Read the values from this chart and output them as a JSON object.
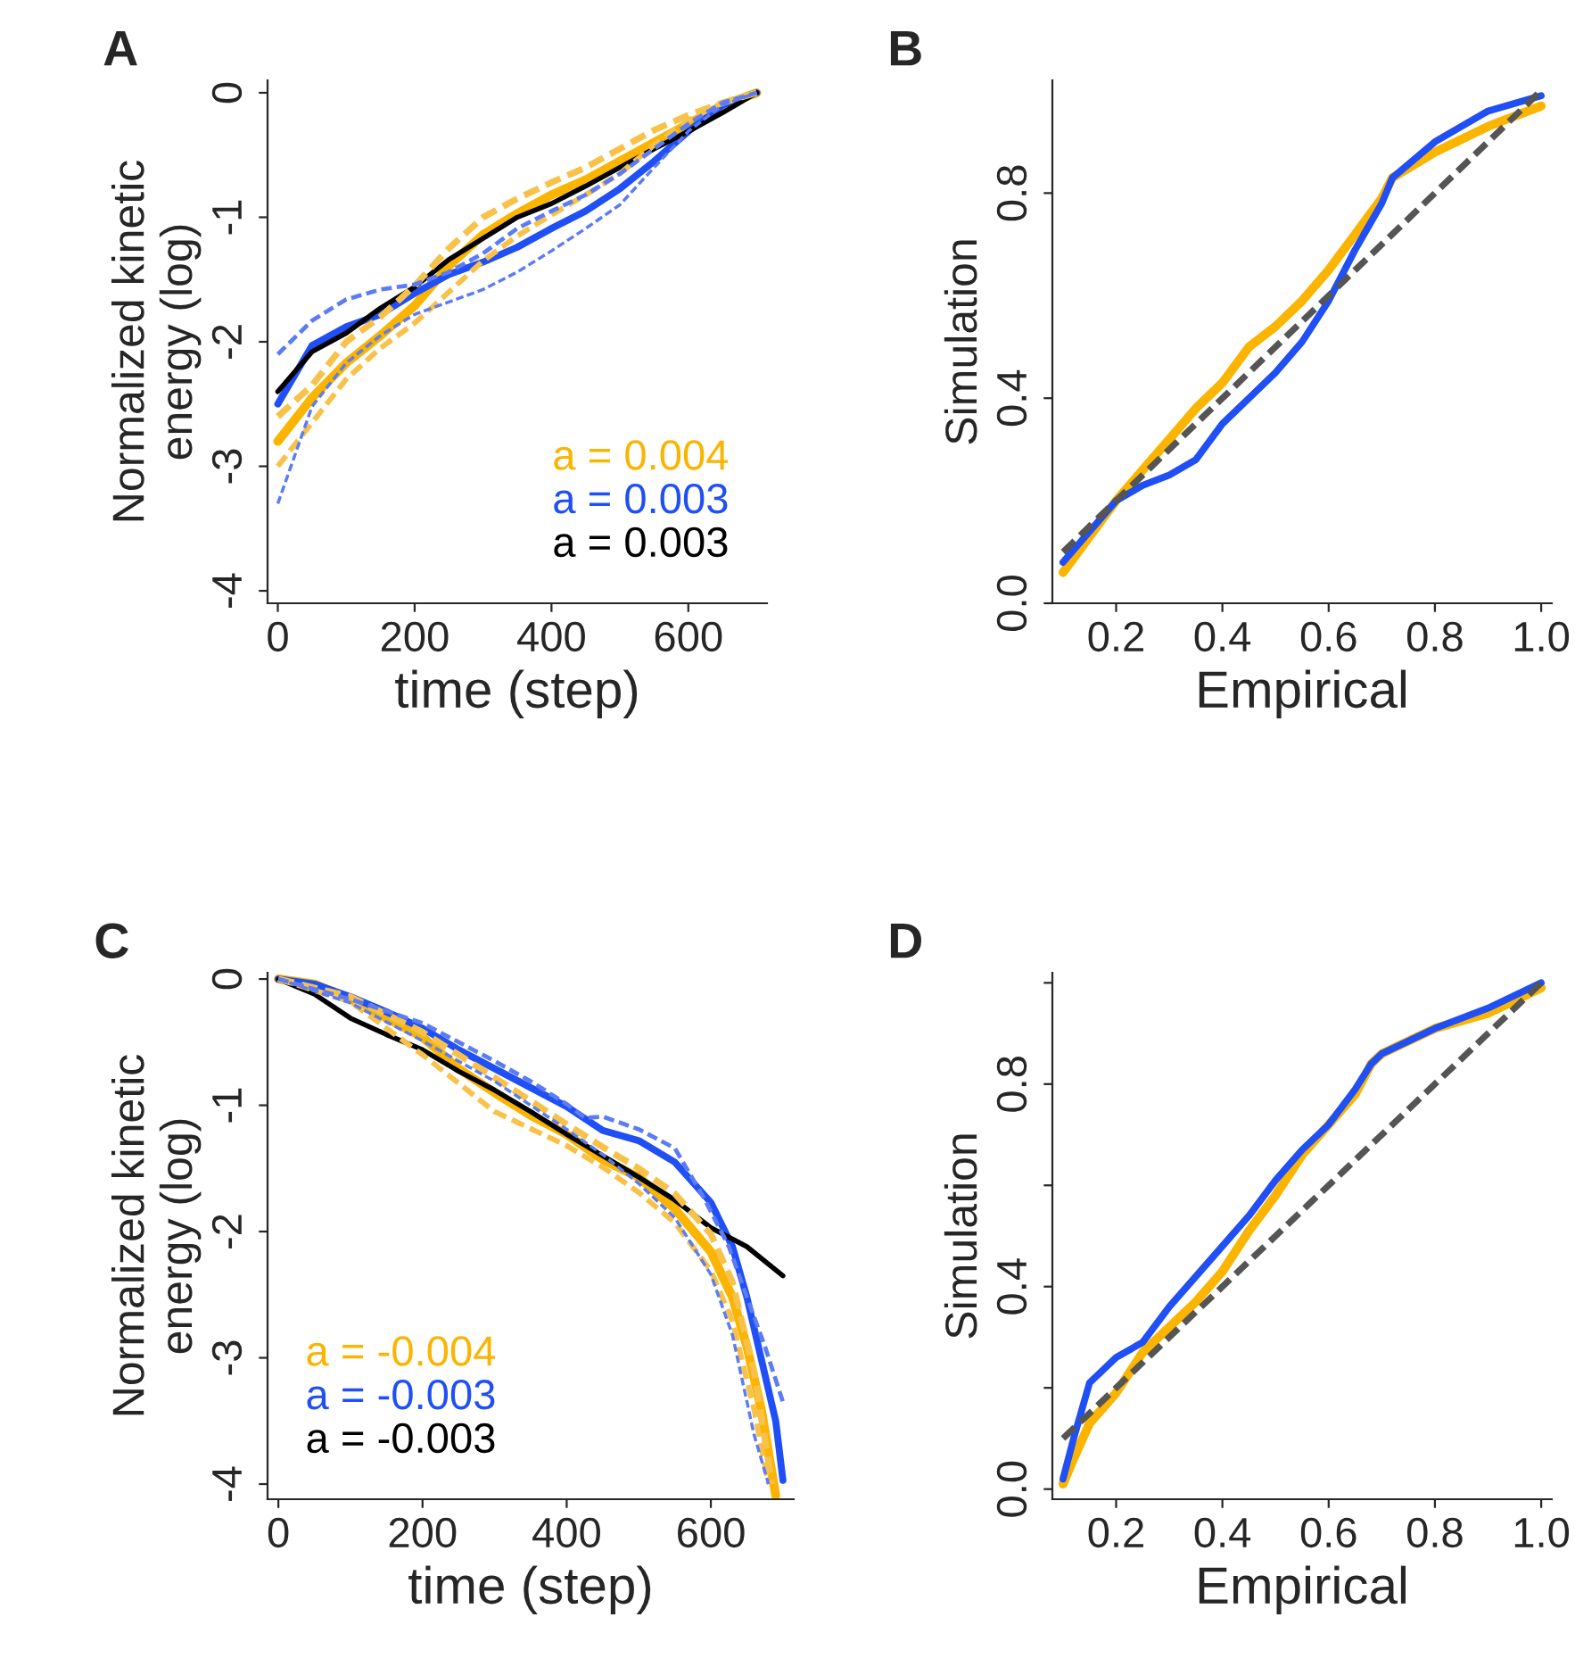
{
  "chart_data": [
    {
      "type": "line",
      "title": "A",
      "xlabel": "time (step)",
      "ylabel": "Normalized kinetic\nenergy (log)",
      "xlim": [
        -15,
        715
      ],
      "ylim": [
        -4.1,
        0.1
      ],
      "xticks": [
        0,
        200,
        400,
        600
      ],
      "yticks": [
        -4,
        -3,
        -2,
        -1,
        0
      ],
      "legend": "bottom right",
      "grid": false,
      "series": [
        {
          "color": "#f8c24a",
          "line_style": "dashed",
          "x": [
            0,
            50,
            100,
            150,
            200,
            250,
            300,
            350,
            400,
            450,
            500,
            550,
            600,
            650,
            700
          ],
          "values": [
            -2.6,
            -2.35,
            -2.0,
            -1.8,
            -1.55,
            -1.25,
            -1.0,
            -0.85,
            -0.72,
            -0.6,
            -0.45,
            -0.3,
            -0.18,
            -0.08,
            0
          ]
        },
        {
          "color": "#f8c24a",
          "line_style": "dashed",
          "x": [
            0,
            50,
            100,
            150,
            200,
            250,
            300,
            350,
            400,
            450,
            500,
            550,
            600,
            650,
            700
          ],
          "values": [
            -3.0,
            -2.65,
            -2.3,
            -2.05,
            -1.85,
            -1.6,
            -1.35,
            -1.15,
            -0.98,
            -0.82,
            -0.65,
            -0.42,
            -0.22,
            -0.08,
            0
          ]
        },
        {
          "color": "#5b7cf5",
          "line_style": "dashed",
          "x": [
            0,
            50,
            100,
            150,
            200,
            250,
            300,
            350,
            400,
            450,
            500,
            550,
            600,
            650,
            700
          ],
          "values": [
            -2.1,
            -1.83,
            -1.66,
            -1.58,
            -1.54,
            -1.44,
            -1.29,
            -1.09,
            -0.95,
            -0.82,
            -0.65,
            -0.45,
            -0.25,
            -0.08,
            0
          ]
        },
        {
          "color": "#5b7cf5",
          "line_style": "dashed",
          "x": [
            0,
            50,
            100,
            150,
            200,
            250,
            300,
            350,
            400,
            450,
            500,
            550,
            600,
            650,
            700
          ],
          "values": [
            -3.3,
            -2.52,
            -2.17,
            -1.95,
            -1.78,
            -1.68,
            -1.58,
            -1.44,
            -1.27,
            -1.09,
            -0.9,
            -0.6,
            -0.31,
            -0.1,
            0
          ]
        },
        {
          "name": "a = 0.004",
          "color": "#fbb400",
          "line_style": "solid",
          "x": [
            0,
            50,
            100,
            150,
            200,
            250,
            300,
            350,
            400,
            450,
            500,
            550,
            600,
            650,
            700
          ],
          "values": [
            -2.8,
            -2.45,
            -2.17,
            -1.95,
            -1.71,
            -1.39,
            -1.14,
            -0.97,
            -0.82,
            -0.7,
            -0.55,
            -0.4,
            -0.25,
            -0.1,
            0
          ]
        },
        {
          "name": "a = 0.003",
          "color": "#1f4ff5",
          "line_style": "solid",
          "x": [
            0,
            50,
            100,
            150,
            200,
            250,
            300,
            350,
            400,
            450,
            500,
            550,
            600,
            650,
            700
          ],
          "values": [
            -2.5,
            -2.03,
            -1.88,
            -1.78,
            -1.61,
            -1.46,
            -1.36,
            -1.24,
            -1.09,
            -0.95,
            -0.77,
            -0.55,
            -0.31,
            -0.1,
            0
          ]
        },
        {
          "name": "a = 0.003",
          "color": "#000000",
          "line_style": "solid",
          "x": [
            0,
            50,
            100,
            150,
            200,
            250,
            300,
            350,
            400,
            450,
            500,
            550,
            600,
            650,
            700
          ],
          "values": [
            -2.4,
            -2.08,
            -1.93,
            -1.73,
            -1.56,
            -1.34,
            -1.17,
            -1.0,
            -0.89,
            -0.75,
            -0.6,
            -0.45,
            -0.31,
            -0.16,
            0
          ]
        }
      ]
    },
    {
      "type": "line",
      "title": "B",
      "xlabel": "Empirical",
      "ylabel": "Simulation",
      "xlim": [
        0.08,
        1.02
      ],
      "ylim": [
        0,
        1.02
      ],
      "xticks": [
        0.2,
        0.4,
        0.6,
        0.8,
        {
          "value": 1,
          "label": "1.0"
        }
      ],
      "yticks": [
        {
          "value": 0,
          "label": "0.0"
        },
        0.4,
        0.8
      ],
      "grid": false,
      "series": [
        {
          "color": "#fbb400",
          "line_style": "solid",
          "x": [
            0.1,
            0.15,
            0.2,
            0.25,
            0.3,
            0.35,
            0.4,
            0.45,
            0.5,
            0.55,
            0.6,
            0.65,
            0.7,
            0.72,
            0.8,
            0.9,
            1.0
          ],
          "values": [
            0.06,
            0.13,
            0.2,
            0.26,
            0.32,
            0.38,
            0.43,
            0.5,
            0.54,
            0.59,
            0.65,
            0.72,
            0.79,
            0.83,
            0.88,
            0.93,
            0.97
          ]
        },
        {
          "color": "#1f4ff5",
          "line_style": "solid",
          "x": [
            0.1,
            0.15,
            0.2,
            0.25,
            0.3,
            0.35,
            0.4,
            0.45,
            0.5,
            0.55,
            0.6,
            0.65,
            0.7,
            0.72,
            0.8,
            0.9,
            1.0
          ],
          "values": [
            0.08,
            0.14,
            0.2,
            0.23,
            0.25,
            0.28,
            0.35,
            0.4,
            0.45,
            0.51,
            0.59,
            0.69,
            0.78,
            0.83,
            0.9,
            0.96,
            0.99
          ]
        },
        {
          "color": "#555555",
          "line_style": "dashed",
          "x": [
            0.1,
            1.0
          ],
          "values": [
            0.1,
            1.0
          ]
        }
      ]
    },
    {
      "type": "line",
      "title": "C",
      "xlabel": "time (step)",
      "ylabel": "Normalized kinetic\nenergy (log)",
      "xlim": [
        -15,
        715
      ],
      "ylim": [
        -4.12,
        0.05
      ],
      "xticks": [
        0,
        200,
        400,
        600
      ],
      "yticks": [
        -4,
        -3,
        -2,
        -1,
        0
      ],
      "legend": "bottom left",
      "grid": false,
      "series": [
        {
          "color": "#f8c24a",
          "line_style": "dashed",
          "x": [
            0,
            100,
            200,
            300,
            400,
            450,
            500,
            550,
            600,
            630,
            660,
            685
          ],
          "values": [
            0,
            -0.14,
            -0.42,
            -0.78,
            -1.15,
            -1.33,
            -1.5,
            -1.7,
            -2.02,
            -2.4,
            -3.11,
            -4.0
          ]
        },
        {
          "color": "#f8c24a",
          "line_style": "dashed",
          "x": [
            0,
            100,
            200,
            300,
            400,
            450,
            500,
            550,
            600,
            630,
            660,
            680
          ],
          "values": [
            0,
            -0.18,
            -0.6,
            -1.05,
            -1.32,
            -1.49,
            -1.69,
            -1.93,
            -2.31,
            -2.71,
            -3.41,
            -4.0
          ]
        },
        {
          "color": "#5b7cf5",
          "line_style": "dashed",
          "x": [
            0,
            100,
            200,
            300,
            350,
            400,
            425,
            450,
            500,
            550,
            590,
            625,
            650,
            675,
            700
          ],
          "values": [
            0,
            -0.16,
            -0.35,
            -0.65,
            -0.81,
            -0.99,
            -1.1,
            -1.09,
            -1.19,
            -1.34,
            -1.73,
            -2.12,
            -2.52,
            -2.91,
            -3.35
          ]
        },
        {
          "color": "#5b7cf5",
          "line_style": "dashed",
          "x": [
            0,
            100,
            200,
            300,
            400,
            450,
            500,
            550,
            600,
            630,
            660,
            680
          ],
          "values": [
            0,
            -0.19,
            -0.49,
            -0.81,
            -1.19,
            -1.39,
            -1.62,
            -1.89,
            -2.34,
            -2.82,
            -3.61,
            -4.0
          ]
        },
        {
          "name": "a = -0.004",
          "color": "#fbb400",
          "line_style": "solid",
          "x": [
            0,
            50,
            100,
            150,
            200,
            250,
            300,
            350,
            400,
            450,
            500,
            550,
            600,
            630,
            650,
            670,
            690
          ],
          "values": [
            0,
            -0.04,
            -0.16,
            -0.31,
            -0.46,
            -0.71,
            -0.9,
            -1.08,
            -1.23,
            -1.43,
            -1.57,
            -1.82,
            -2.16,
            -2.52,
            -2.91,
            -3.41,
            -4.09
          ]
        },
        {
          "name": "a = -0.003",
          "color": "#1f4ff5",
          "line_style": "solid",
          "x": [
            0,
            50,
            100,
            150,
            200,
            250,
            300,
            350,
            400,
            450,
            500,
            550,
            600,
            630,
            650,
            670,
            690,
            700
          ],
          "values": [
            0,
            -0.04,
            -0.14,
            -0.26,
            -0.39,
            -0.56,
            -0.71,
            -0.86,
            -1.01,
            -1.2,
            -1.28,
            -1.45,
            -1.77,
            -2.12,
            -2.52,
            -3.01,
            -3.5,
            -3.97
          ]
        },
        {
          "name": "a = -0.003",
          "color": "#000000",
          "line_style": "solid",
          "x": [
            0,
            50,
            100,
            150,
            200,
            250,
            300,
            350,
            400,
            450,
            500,
            550,
            600,
            650,
            700
          ],
          "values": [
            0,
            -0.12,
            -0.31,
            -0.44,
            -0.56,
            -0.73,
            -0.88,
            -1.05,
            -1.23,
            -1.4,
            -1.57,
            -1.75,
            -1.97,
            -2.12,
            -2.35
          ]
        }
      ]
    },
    {
      "type": "line",
      "title": "D",
      "xlabel": "Empirical",
      "ylabel": "Simulation",
      "xlim": [
        0.08,
        1.02
      ],
      "ylim": [
        -0.02,
        1.02
      ],
      "xticks": [
        0.2,
        0.4,
        0.6,
        0.8,
        {
          "value": 1,
          "label": "1.0"
        }
      ],
      "yticks": [
        {
          "value": 0,
          "label": "0.0"
        },
        {
          "value": 0.2,
          "label": null
        },
        0.4,
        {
          "value": 0.6,
          "label": null
        },
        0.8,
        {
          "value": 1,
          "label": null
        }
      ],
      "grid": false,
      "series": [
        {
          "color": "#fbb400",
          "line_style": "solid",
          "x": [
            0.1,
            0.12,
            0.15,
            0.2,
            0.25,
            0.3,
            0.35,
            0.4,
            0.45,
            0.5,
            0.55,
            0.6,
            0.65,
            0.68,
            0.7,
            0.8,
            0.9,
            1.0
          ],
          "values": [
            0.01,
            0.06,
            0.13,
            0.19,
            0.27,
            0.32,
            0.37,
            0.43,
            0.51,
            0.58,
            0.66,
            0.72,
            0.78,
            0.84,
            0.86,
            0.91,
            0.94,
            0.99
          ]
        },
        {
          "color": "#1f4ff5",
          "line_style": "solid",
          "x": [
            0.1,
            0.12,
            0.15,
            0.2,
            0.25,
            0.3,
            0.35,
            0.4,
            0.45,
            0.5,
            0.55,
            0.6,
            0.65,
            0.68,
            0.7,
            0.8,
            0.9,
            1.0
          ],
          "values": [
            0.02,
            0.1,
            0.21,
            0.26,
            0.29,
            0.36,
            0.42,
            0.48,
            0.54,
            0.61,
            0.67,
            0.72,
            0.79,
            0.84,
            0.86,
            0.91,
            0.95,
            1.0
          ]
        },
        {
          "color": "#555555",
          "line_style": "dashed",
          "x": [
            0.1,
            1.0
          ],
          "values": [
            0.1,
            1.0
          ]
        }
      ]
    }
  ]
}
